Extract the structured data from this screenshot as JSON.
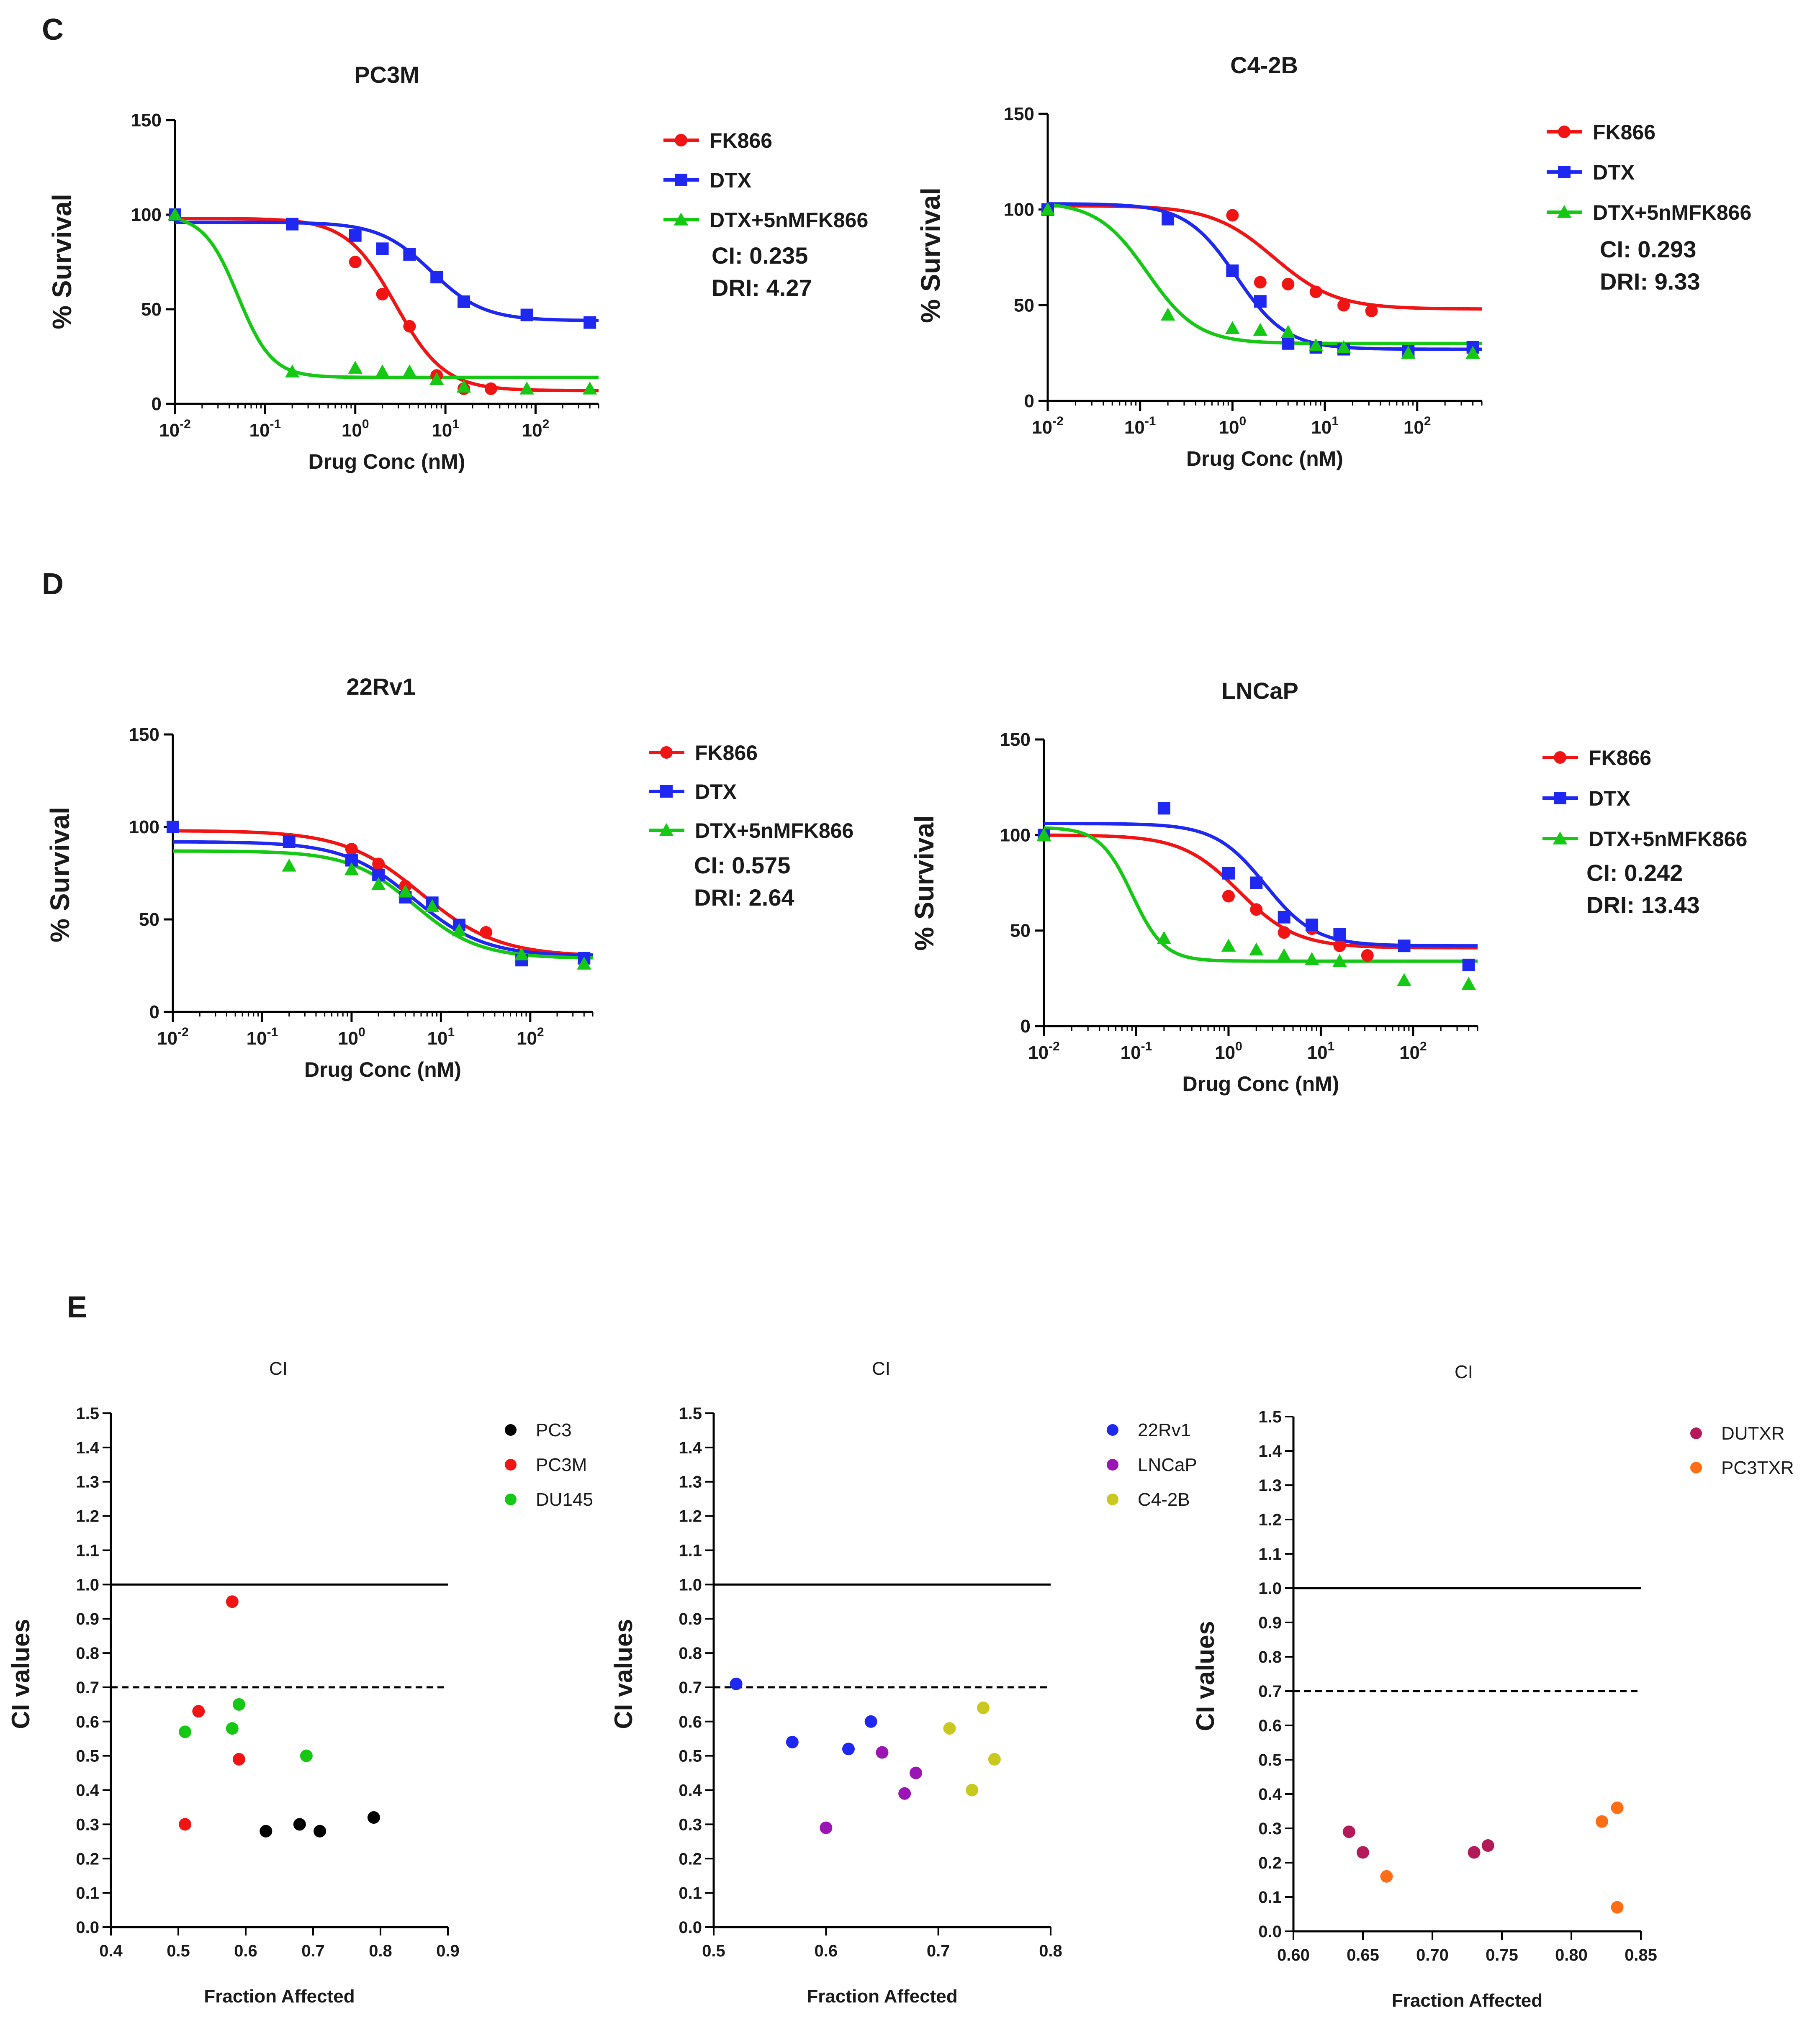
{
  "panel_labels": [
    "C",
    "D",
    "E"
  ],
  "colors": {
    "red": "#f01414",
    "blue": "#1e28f0",
    "green": "#14c814",
    "black": "#000000",
    "purple": "#9b14b4",
    "yellow": "#c8c81e",
    "maroon": "#b4195a",
    "orange": "#ff6e14"
  },
  "chart_data": [
    {
      "type": "line",
      "id": "PC3M",
      "title": "PC3M",
      "xlabel": "Drug Conc (nM)",
      "ylabel": "% Survival",
      "xscale": "log",
      "xlim": [
        0.01,
        500
      ],
      "ylim": [
        0,
        150
      ],
      "yticks": [
        "0",
        "50",
        "100",
        "150"
      ],
      "yvals": [
        0,
        50,
        100,
        150
      ],
      "xticks": [
        {
          "b": "10",
          "e": "-2"
        },
        {
          "b": "10",
          "e": "-1"
        },
        {
          "b": "10",
          "e": "0"
        },
        {
          "b": "10",
          "e": "1"
        },
        {
          "b": "10",
          "e": "2"
        }
      ],
      "xtickvals": [
        0.01,
        0.1,
        1,
        10,
        100
      ],
      "series": [
        {
          "name": "FK866",
          "color": "red",
          "marker": "circle",
          "x": [
            0.01,
            1,
            2,
            4,
            8,
            16,
            32
          ],
          "y": [
            100,
            75,
            58,
            41,
            15,
            8,
            8
          ],
          "fit": {
            "top": 98,
            "bottom": 7,
            "ec50": 2.8,
            "hill": 1.6
          }
        },
        {
          "name": "DTX",
          "color": "blue",
          "marker": "square",
          "x": [
            0.01,
            0.2,
            1,
            2,
            4,
            8,
            16,
            80,
            400
          ],
          "y": [
            100,
            95,
            89,
            82,
            79,
            67,
            54,
            47,
            43
          ],
          "fit": {
            "top": 96,
            "bottom": 44,
            "ec50": 7,
            "hill": 1.5
          }
        },
        {
          "name": "DTX+5nMFK866",
          "color": "green",
          "marker": "triangle",
          "x": [
            0.01,
            0.2,
            1,
            2,
            4,
            8,
            16,
            80,
            400
          ],
          "y": [
            100,
            17,
            19,
            17,
            17,
            13,
            9,
            8,
            8
          ],
          "fit": {
            "top": 100,
            "bottom": 14,
            "ec50": 0.05,
            "hill": 2.3
          }
        }
      ],
      "stats": [
        "CI: 0.235",
        "DRI: 4.27"
      ]
    },
    {
      "type": "line",
      "id": "C4-2B",
      "title": "C4-2B",
      "xlabel": "Drug Conc (nM)",
      "ylabel": "% Survival",
      "xscale": "log",
      "xlim": [
        0.01,
        500
      ],
      "ylim": [
        0,
        150
      ],
      "yticks": [
        "0",
        "50",
        "100",
        "150"
      ],
      "yvals": [
        0,
        50,
        100,
        150
      ],
      "xticks": [
        {
          "b": "10",
          "e": "-2"
        },
        {
          "b": "10",
          "e": "-1"
        },
        {
          "b": "10",
          "e": "0"
        },
        {
          "b": "10",
          "e": "1"
        },
        {
          "b": "10",
          "e": "2"
        }
      ],
      "xtickvals": [
        0.01,
        0.1,
        1,
        10,
        100
      ],
      "series": [
        {
          "name": "FK866",
          "color": "red",
          "marker": "circle",
          "x": [
            0.01,
            1,
            2,
            4,
            8,
            16,
            32
          ],
          "y": [
            100,
            97,
            62,
            61,
            57,
            50,
            47
          ],
          "fit": {
            "top": 102,
            "bottom": 48,
            "ec50": 2.8,
            "hill": 1.3
          }
        },
        {
          "name": "DTX",
          "color": "blue",
          "marker": "square",
          "x": [
            0.01,
            0.2,
            1,
            2,
            4,
            8,
            16,
            80,
            400
          ],
          "y": [
            100,
            95,
            68,
            52,
            30,
            28,
            27,
            26,
            28
          ],
          "fit": {
            "top": 103,
            "bottom": 27,
            "ec50": 1.1,
            "hill": 1.6
          }
        },
        {
          "name": "DTX+5nMFK866",
          "color": "green",
          "marker": "triangle",
          "x": [
            0.01,
            0.2,
            1,
            2,
            4,
            8,
            16,
            80,
            400
          ],
          "y": [
            100,
            45,
            38,
            37,
            36,
            29,
            28,
            25,
            25
          ],
          "fit": {
            "top": 104,
            "bottom": 30,
            "ec50": 0.12,
            "hill": 1.6
          }
        }
      ],
      "stats": [
        "CI: 0.293",
        "DRI: 9.33"
      ]
    },
    {
      "type": "line",
      "id": "22Rv1",
      "title": "22Rv1",
      "xlabel": "Drug Conc (nM)",
      "ylabel": "% Survival",
      "xscale": "log",
      "xlim": [
        0.01,
        500
      ],
      "ylim": [
        0,
        150
      ],
      "yticks": [
        "0",
        "50",
        "100",
        "150"
      ],
      "yvals": [
        0,
        50,
        100,
        150
      ],
      "xticks": [
        {
          "b": "10",
          "e": "-2"
        },
        {
          "b": "10",
          "e": "-1"
        },
        {
          "b": "10",
          "e": "0"
        },
        {
          "b": "10",
          "e": "1"
        },
        {
          "b": "10",
          "e": "2"
        }
      ],
      "xtickvals": [
        0.01,
        0.1,
        1,
        10,
        100
      ],
      "series": [
        {
          "name": "FK866",
          "color": "red",
          "marker": "circle",
          "x": [
            0.01,
            1,
            2,
            4,
            8,
            16,
            32
          ],
          "y": [
            100,
            88,
            80,
            68,
            58,
            47,
            43
          ],
          "fit": {
            "top": 98,
            "bottom": 30,
            "ec50": 6,
            "hill": 1
          }
        },
        {
          "name": "DTX",
          "color": "blue",
          "marker": "square",
          "x": [
            0.01,
            0.2,
            1,
            2,
            4,
            8,
            16,
            80,
            400
          ],
          "y": [
            100,
            92,
            82,
            74,
            62,
            59,
            47,
            28,
            29
          ],
          "fit": {
            "top": 92,
            "bottom": 30,
            "ec50": 5,
            "hill": 1.1
          }
        },
        {
          "name": "DTX+5nMFK866",
          "color": "green",
          "marker": "triangle",
          "x": [
            0.2,
            1,
            2,
            4,
            8,
            16,
            80,
            400
          ],
          "y": [
            79,
            77,
            69,
            65,
            57,
            44,
            31,
            26
          ],
          "fit": {
            "top": 87,
            "bottom": 29,
            "ec50": 5,
            "hill": 1.2
          }
        }
      ],
      "stats": [
        "CI: 0.575",
        "DRI: 2.64"
      ]
    },
    {
      "type": "line",
      "id": "LNCaP",
      "title": "LNCaP",
      "xlabel": "Drug Conc (nM)",
      "ylabel": "% Survival",
      "xscale": "log",
      "xlim": [
        0.01,
        500
      ],
      "ylim": [
        0,
        150
      ],
      "yticks": [
        "0",
        "50",
        "100",
        "150"
      ],
      "yvals": [
        0,
        50,
        100,
        150
      ],
      "xticks": [
        {
          "b": "10",
          "e": "-2"
        },
        {
          "b": "10",
          "e": "-1"
        },
        {
          "b": "10",
          "e": "0"
        },
        {
          "b": "10",
          "e": "1"
        },
        {
          "b": "10",
          "e": "2"
        }
      ],
      "xtickvals": [
        0.01,
        0.1,
        1,
        10,
        100
      ],
      "series": [
        {
          "name": "FK866",
          "color": "red",
          "marker": "circle",
          "x": [
            0.01,
            1,
            2,
            4,
            8,
            16,
            32
          ],
          "y": [
            100,
            68,
            61,
            49,
            51,
            42,
            37
          ],
          "fit": {
            "top": 100,
            "bottom": 41,
            "ec50": 1.3,
            "hill": 1.4
          }
        },
        {
          "name": "DTX",
          "color": "blue",
          "marker": "square",
          "x": [
            0.01,
            0.2,
            1,
            2,
            4,
            8,
            16,
            80,
            400
          ],
          "y": [
            100,
            114,
            80,
            75,
            57,
            53,
            48,
            42,
            32
          ],
          "fit": {
            "top": 106,
            "bottom": 42,
            "ec50": 2.5,
            "hill": 1.6
          }
        },
        {
          "name": "DTX+5nMFK866",
          "color": "green",
          "marker": "triangle",
          "x": [
            0.01,
            0.2,
            1,
            2,
            4,
            8,
            16,
            80,
            400
          ],
          "y": [
            100,
            46,
            42,
            40,
            37,
            35,
            34,
            24,
            22
          ],
          "fit": {
            "top": 104,
            "bottom": 34,
            "ec50": 0.09,
            "hill": 2.5
          }
        }
      ],
      "stats": [
        "CI: 0.242",
        "DRI: 13.43"
      ]
    },
    {
      "type": "scatter",
      "id": "E1",
      "title": "CI",
      "xlabel": "Fraction Affected",
      "ylabel": "CI values",
      "xlim": [
        0.4,
        0.9
      ],
      "ylim": [
        0,
        1.5
      ],
      "xticks": [
        "0.4",
        "0.5",
        "0.6",
        "0.7",
        "0.8",
        "0.9"
      ],
      "xtickvals": [
        0.4,
        0.5,
        0.6,
        0.7,
        0.8,
        0.9
      ],
      "yticks": [
        "0.0",
        "0.1",
        "0.2",
        "0.3",
        "0.4",
        "0.5",
        "0.6",
        "0.7",
        "0.8",
        "0.9",
        "1.0",
        "1.1",
        "1.2",
        "1.3",
        "1.4",
        "1.5"
      ],
      "yvals": [
        0,
        0.1,
        0.2,
        0.3,
        0.4,
        0.5,
        0.6,
        0.7,
        0.8,
        0.9,
        1.0,
        1.1,
        1.2,
        1.3,
        1.4,
        1.5
      ],
      "hlines": [
        {
          "y": 1.0,
          "style": "solid"
        },
        {
          "y": 0.7,
          "style": "dashed"
        }
      ],
      "series": [
        {
          "name": "PC3",
          "color": "black",
          "x": [
            0.63,
            0.68,
            0.71,
            0.79
          ],
          "y": [
            0.28,
            0.3,
            0.28,
            0.32
          ]
        },
        {
          "name": "PC3M",
          "color": "red",
          "x": [
            0.51,
            0.53,
            0.58,
            0.59
          ],
          "y": [
            0.3,
            0.63,
            0.95,
            0.49
          ]
        },
        {
          "name": "DU145",
          "color": "green",
          "x": [
            0.51,
            0.58,
            0.59,
            0.69
          ],
          "y": [
            0.57,
            0.58,
            0.65,
            0.5
          ]
        }
      ]
    },
    {
      "type": "scatter",
      "id": "E2",
      "title": "CI",
      "xlabel": "Fraction Affected",
      "ylabel": "CI values",
      "xlim": [
        0.5,
        0.8
      ],
      "ylim": [
        0,
        1.5
      ],
      "xticks": [
        "0.5",
        "0.6",
        "0.7",
        "0.8"
      ],
      "xtickvals": [
        0.5,
        0.6,
        0.7,
        0.8
      ],
      "yticks": [
        "0.0",
        "0.1",
        "0.2",
        "0.3",
        "0.4",
        "0.5",
        "0.6",
        "0.7",
        "0.8",
        "0.9",
        "1.0",
        "1.1",
        "1.2",
        "1.3",
        "1.4",
        "1.5"
      ],
      "yvals": [
        0,
        0.1,
        0.2,
        0.3,
        0.4,
        0.5,
        0.6,
        0.7,
        0.8,
        0.9,
        1.0,
        1.1,
        1.2,
        1.3,
        1.4,
        1.5
      ],
      "hlines": [
        {
          "y": 1.0,
          "style": "solid"
        },
        {
          "y": 0.7,
          "style": "dashed"
        }
      ],
      "series": [
        {
          "name": "22Rv1",
          "color": "blue",
          "x": [
            0.52,
            0.57,
            0.62,
            0.64
          ],
          "y": [
            0.71,
            0.54,
            0.52,
            0.6
          ]
        },
        {
          "name": "LNCaP",
          "color": "purple",
          "x": [
            0.6,
            0.65,
            0.67,
            0.68
          ],
          "y": [
            0.29,
            0.51,
            0.39,
            0.45
          ]
        },
        {
          "name": "C4-2B",
          "color": "yellow",
          "x": [
            0.71,
            0.73,
            0.74,
            0.75
          ],
          "y": [
            0.58,
            0.4,
            0.64,
            0.49
          ]
        }
      ]
    },
    {
      "type": "scatter",
      "id": "E3",
      "title": "CI",
      "xlabel": "Fraction Affected",
      "ylabel": "CI values",
      "xlim": [
        0.6,
        0.85
      ],
      "ylim": [
        0,
        1.5
      ],
      "xticks": [
        "0.60",
        "0.65",
        "0.70",
        "0.75",
        "0.80",
        "0.85"
      ],
      "xtickvals": [
        0.6,
        0.65,
        0.7,
        0.75,
        0.8,
        0.85
      ],
      "yticks": [
        "0.0",
        "0.1",
        "0.2",
        "0.3",
        "0.4",
        "0.5",
        "0.6",
        "0.7",
        "0.8",
        "0.9",
        "1.0",
        "1.1",
        "1.2",
        "1.3",
        "1.4",
        "1.5"
      ],
      "yvals": [
        0,
        0.1,
        0.2,
        0.3,
        0.4,
        0.5,
        0.6,
        0.7,
        0.8,
        0.9,
        1.0,
        1.1,
        1.2,
        1.3,
        1.4,
        1.5
      ],
      "hlines": [
        {
          "y": 1.0,
          "style": "solid"
        },
        {
          "y": 0.7,
          "style": "dashed"
        }
      ],
      "series": [
        {
          "name": "DUTXR",
          "color": "maroon",
          "x": [
            0.64,
            0.65,
            0.73,
            0.74
          ],
          "y": [
            0.29,
            0.23,
            0.23,
            0.25
          ]
        },
        {
          "name": "PC3TXR",
          "color": "orange",
          "x": [
            0.667,
            0.822,
            0.833,
            0.833
          ],
          "y": [
            0.16,
            0.32,
            0.36,
            0.07
          ]
        }
      ]
    }
  ]
}
